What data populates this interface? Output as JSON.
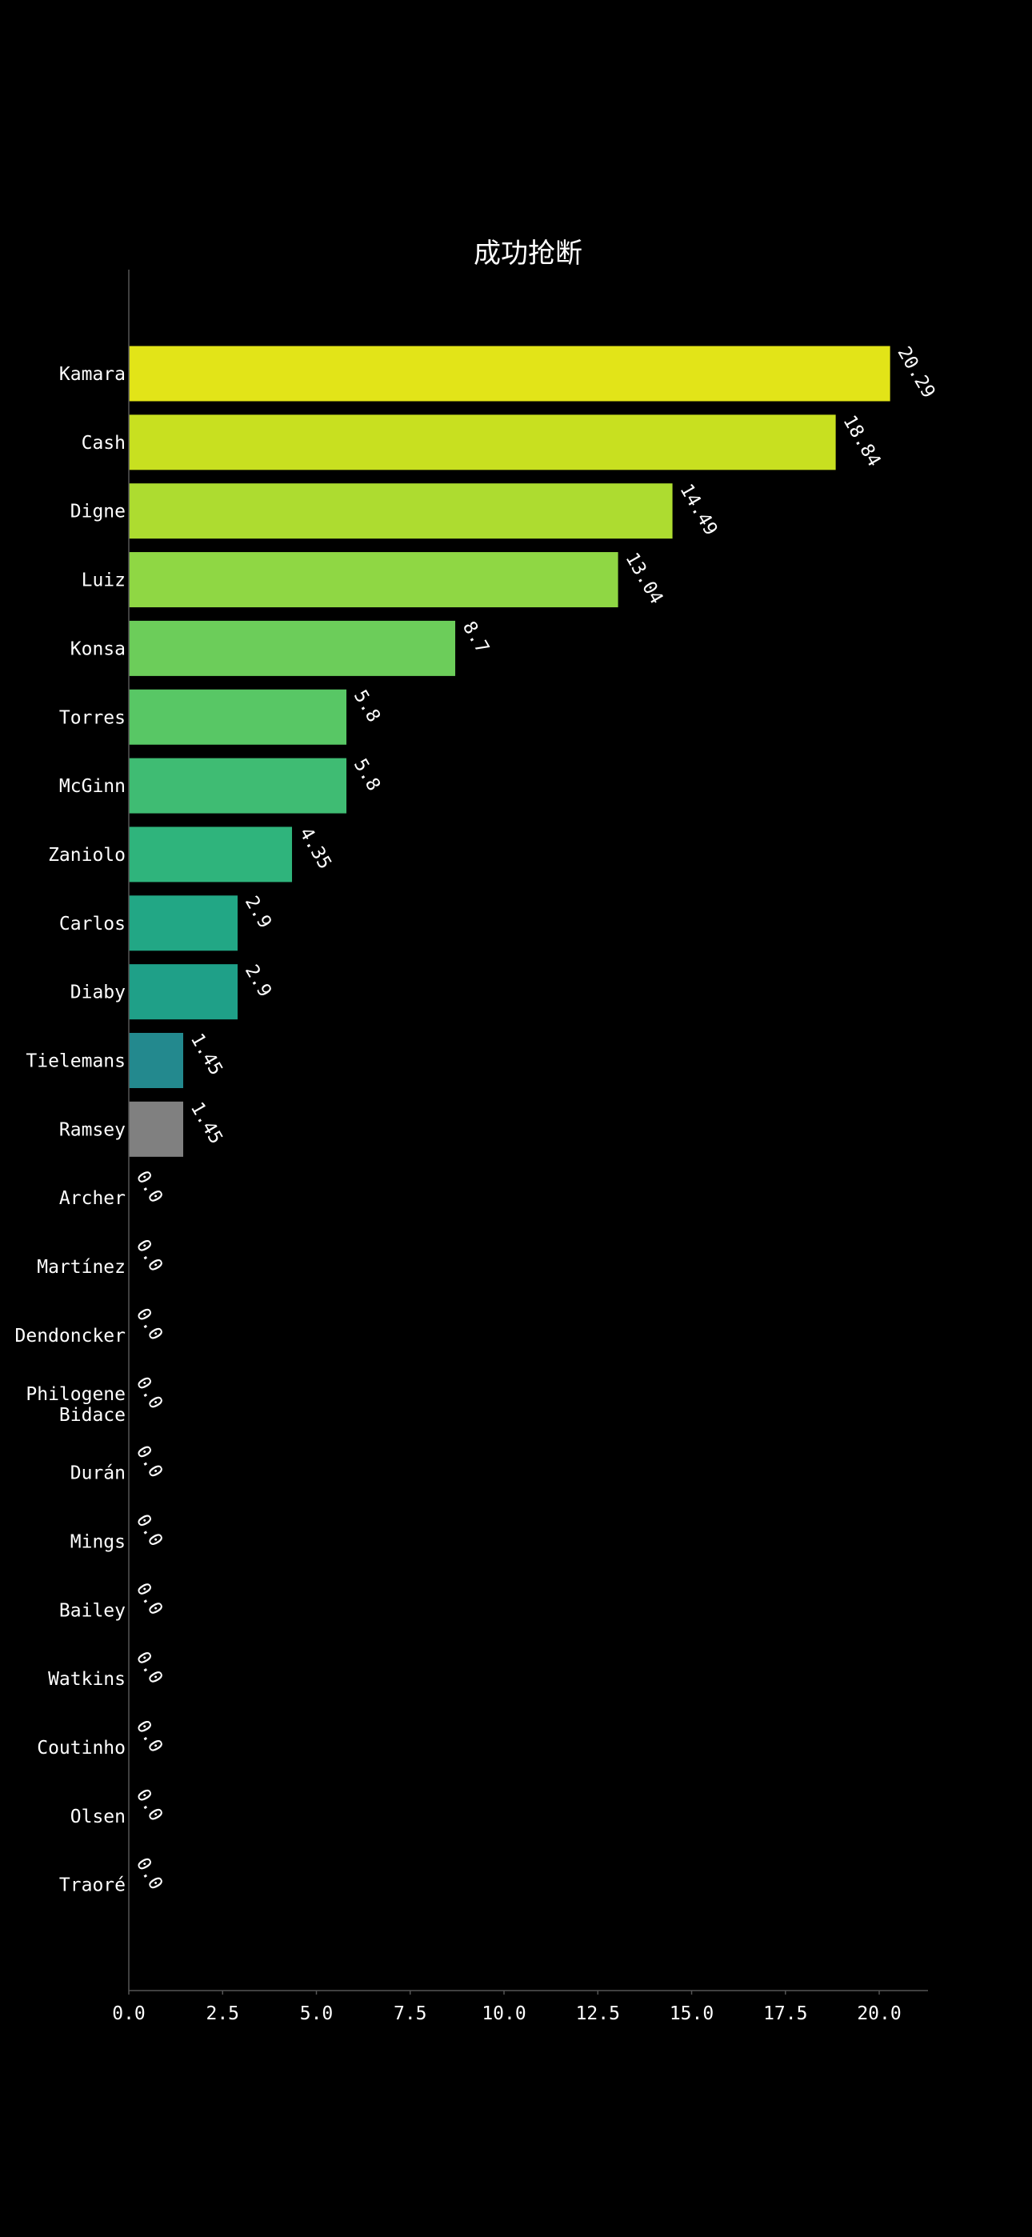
{
  "chart_data": {
    "type": "bar",
    "orientation": "horizontal",
    "title": "成功抢断",
    "xlabel": "",
    "ylabel": "",
    "xlim": [
      0,
      21.3
    ],
    "xticks": [
      "0.0",
      "2.5",
      "5.0",
      "7.5",
      "10.0",
      "12.5",
      "15.0",
      "17.5",
      "20.0"
    ],
    "grid": false,
    "categories": [
      [
        "Kamara"
      ],
      [
        "Cash"
      ],
      [
        "Digne"
      ],
      [
        "Luiz"
      ],
      [
        "Konsa"
      ],
      [
        "Torres"
      ],
      [
        "McGinn"
      ],
      [
        "Zaniolo"
      ],
      [
        "Carlos"
      ],
      [
        "Diaby"
      ],
      [
        "Tielemans"
      ],
      [
        "Ramsey"
      ],
      [
        "Archer"
      ],
      [
        "Martínez"
      ],
      [
        "Dendoncker"
      ],
      [
        "Philogene",
        "Bidace"
      ],
      [
        "Durán"
      ],
      [
        "Mings"
      ],
      [
        "Bailey"
      ],
      [
        "Watkins"
      ],
      [
        "Coutinho"
      ],
      [
        "Olsen"
      ],
      [
        "Traoré"
      ]
    ],
    "values": [
      20.29,
      18.84,
      14.49,
      13.04,
      8.7,
      5.8,
      5.8,
      4.35,
      2.9,
      2.9,
      1.45,
      1.45,
      0.0,
      0.0,
      0.0,
      0.0,
      0.0,
      0.0,
      0.0,
      0.0,
      0.0,
      0.0,
      0.0
    ],
    "value_labels": [
      "20.29",
      "18.84",
      "14.49",
      "13.04",
      "8.7",
      "5.8",
      "5.8",
      "4.35",
      "2.9",
      "2.9",
      "1.45",
      "1.45",
      "0.0",
      "0.0",
      "0.0",
      "0.0",
      "0.0",
      "0.0",
      "0.0",
      "0.0",
      "0.0",
      "0.0",
      "0.0"
    ],
    "colors": [
      "#e2e418",
      "#c8e020",
      "#addc30",
      "#8fd744",
      "#6ccd5a",
      "#58c765",
      "#3fbc73",
      "#2fb47c",
      "#22a785",
      "#1fa088",
      "#23898e",
      "#808080",
      "#808080",
      "#808080",
      "#808080",
      "#808080",
      "#808080",
      "#808080",
      "#808080",
      "#808080",
      "#808080",
      "#808080",
      "#808080"
    ],
    "background": "#000000",
    "text_color": "#ffffff",
    "axis_color": "#555555"
  }
}
